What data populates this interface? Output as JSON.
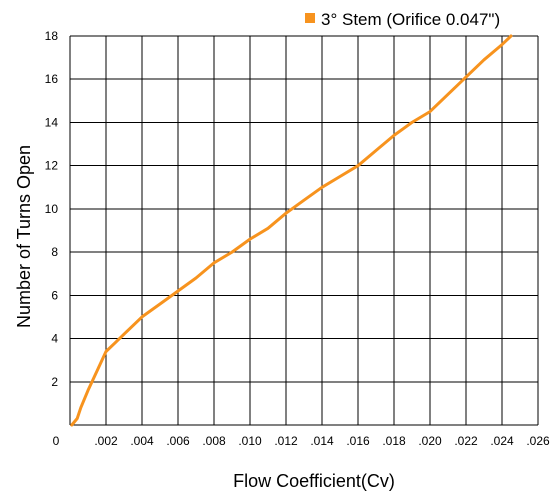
{
  "chart_data": {
    "type": "line",
    "title": "",
    "xlabel": "Flow Coefficient(Cv)",
    "ylabel": "Number of Turns Open",
    "xlim": [
      0,
      0.026
    ],
    "ylim": [
      0,
      18
    ],
    "x_ticks": [
      0,
      0.002,
      0.004,
      0.006,
      0.008,
      0.01,
      0.012,
      0.014,
      0.016,
      0.018,
      0.02,
      0.022,
      0.024,
      0.026
    ],
    "x_tick_labels": [
      "0",
      ".002",
      ".004",
      ".006",
      ".008",
      ".010",
      ".012",
      ".014",
      ".016",
      ".018",
      ".020",
      ".022",
      ".024",
      ".026"
    ],
    "y_ticks": [
      0,
      2,
      4,
      6,
      8,
      10,
      12,
      14,
      16,
      18
    ],
    "y_tick_labels": [
      "0",
      "2",
      "4",
      "6",
      "8",
      "10",
      "12",
      "14",
      "16",
      "18"
    ],
    "grid": true,
    "legend_position": "top-right",
    "colors": {
      "series": "#F7931E",
      "grid": "#000000"
    },
    "series": [
      {
        "name": "3° Stem (Orifice 0.047\")",
        "x": [
          0.0001,
          0.0004,
          0.0006,
          0.0008,
          0.001,
          0.0015,
          0.002,
          0.0025,
          0.003,
          0.004,
          0.005,
          0.006,
          0.007,
          0.008,
          0.009,
          0.01,
          0.011,
          0.012,
          0.013,
          0.014,
          0.015,
          0.016,
          0.017,
          0.018,
          0.019,
          0.02,
          0.021,
          0.022,
          0.0225,
          0.023,
          0.024,
          0.0245
        ],
        "y": [
          0.0,
          0.3,
          0.8,
          1.2,
          1.6,
          2.5,
          3.4,
          3.8,
          4.2,
          5.0,
          5.6,
          6.2,
          6.8,
          7.5,
          8.0,
          8.6,
          9.1,
          9.8,
          10.4,
          11.0,
          11.5,
          12.0,
          12.7,
          13.4,
          14.0,
          14.5,
          15.3,
          16.1,
          16.5,
          16.9,
          17.6,
          18.0
        ]
      }
    ]
  }
}
